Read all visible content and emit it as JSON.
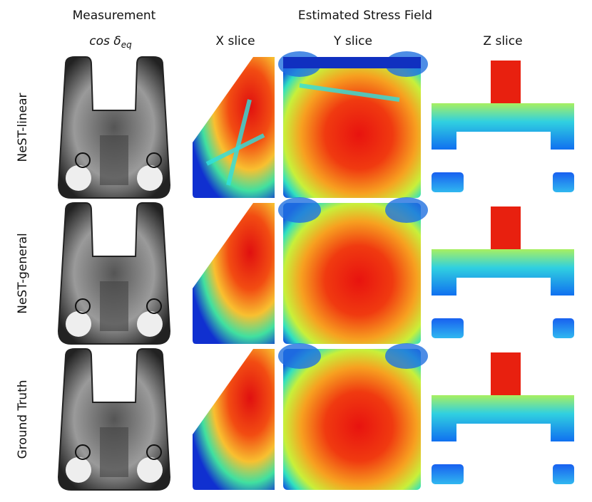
{
  "header": {
    "measurement": "Measurement",
    "measurement_symbol": "cos δ",
    "measurement_subscript": "eq",
    "group": "Estimated Stress Field",
    "columns": [
      "X slice",
      "Y slice",
      "Z slice"
    ]
  },
  "rows": [
    "NeST-linear",
    "NeST-general",
    "Ground Truth"
  ]
}
